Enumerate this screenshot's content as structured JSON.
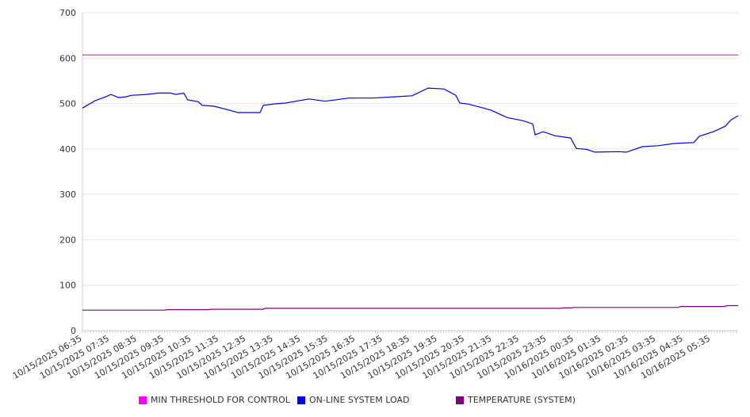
{
  "chart_data": {
    "type": "line",
    "title": "",
    "xlabel": "",
    "ylabel": "",
    "ylim": [
      0,
      700
    ],
    "yticks": [
      0,
      100,
      200,
      300,
      400,
      500,
      600,
      700
    ],
    "xlim_hours": [
      0,
      24
    ],
    "x_tick_labels": [
      "10/15/2025 06:35",
      "10/15/2025 07:35",
      "10/15/2025 08:35",
      "10/15/2025 09:35",
      "10/15/2025 10:35",
      "10/15/2025 11:35",
      "10/15/2025 12:35",
      "10/15/2025 13:35",
      "10/15/2025 14:35",
      "10/15/2025 15:35",
      "10/15/2025 16:35",
      "10/15/2025 17:35",
      "10/15/2025 18:35",
      "10/15/2025 19:35",
      "10/15/2025 20:35",
      "10/15/2025 21:35",
      "10/15/2025 22:35",
      "10/15/2025 23:35",
      "10/16/2025 00:35",
      "10/16/2025 01:35",
      "10/16/2025 02:35",
      "10/16/2025 03:35",
      "10/16/2025 04:35",
      "10/16/2025 05:35"
    ],
    "grid": true,
    "legend_position": "bottom",
    "series": [
      {
        "name": "MIN THRESHOLD FOR CONTROL",
        "color": "#ff00ff",
        "x": [
          0,
          24
        ],
        "y": [
          607,
          607
        ]
      },
      {
        "name": "ON-LINE SYSTEM LOAD",
        "color": "#0000ff",
        "x": [
          0,
          0.46,
          0.9,
          1.04,
          1.33,
          1.62,
          1.77,
          2.35,
          2.79,
          3.22,
          3.42,
          3.71,
          3.85,
          4.24,
          4.38,
          4.82,
          5.4,
          5.69,
          6.5,
          6.62,
          7.0,
          7.43,
          8.3,
          8.88,
          9.75,
          10.62,
          11.49,
          12.07,
          12.65,
          13.23,
          13.67,
          13.81,
          14.1,
          14.68,
          14.97,
          15.55,
          16.13,
          16.48,
          16.57,
          16.86,
          17.29,
          17.87,
          18.08,
          18.46,
          18.75,
          19.62,
          19.91,
          20.49,
          21.07,
          21.65,
          22.38,
          22.58,
          23.1,
          23.53,
          23.74,
          24.0
        ],
        "y": [
          490,
          506,
          516,
          520,
          513,
          515,
          518,
          520,
          523,
          523,
          520,
          523,
          508,
          504,
          496,
          494,
          485,
          480,
          480,
          496,
          499,
          501,
          510,
          505,
          512,
          512,
          515,
          517,
          534,
          532,
          518,
          501,
          499,
          490,
          485,
          469,
          462,
          455,
          431,
          438,
          429,
          424,
          401,
          399,
          393,
          394,
          393,
          405,
          407,
          412,
          414,
          428,
          438,
          450,
          464,
          473
        ]
      },
      {
        "name": "TEMPERATURE (SYSTEM)",
        "color": "#800080",
        "x": [
          0,
          3,
          3.1,
          4.6,
          4.7,
          6.6,
          6.7,
          17.5,
          17.6,
          17.9,
          18,
          21.8,
          21.9,
          23.5,
          23.6,
          24
        ],
        "y": [
          45,
          45,
          46,
          46,
          47,
          47,
          49,
          49,
          50,
          50,
          51,
          51,
          53,
          53,
          55,
          55
        ]
      }
    ]
  }
}
